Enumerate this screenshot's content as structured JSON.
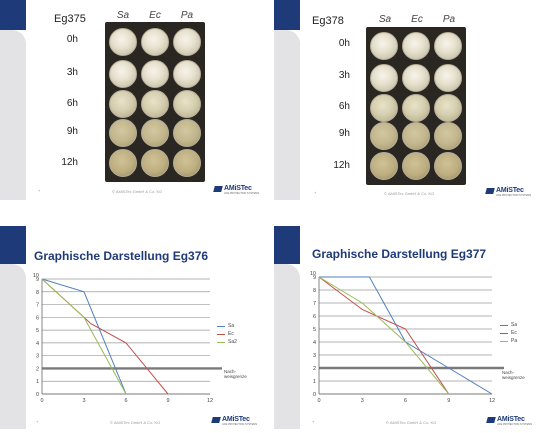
{
  "colors": {
    "brand_blue": "#1e3a78",
    "sidebar_grey": "#e3e3e6",
    "series_sa": "#4f81bd",
    "series_ec": "#c0504d",
    "series_pa": "#9bbb59"
  },
  "footer": {
    "copyright": "© AMiSTec GmbH & Co. KG",
    "logo_text": "AMiSTec",
    "logo_sub": "LIFE PROTECTION SYSTEMS",
    "page_num": "+"
  },
  "slides": [
    {
      "sample": "Eg375",
      "columns": [
        "Sa",
        "Ec",
        "Pa"
      ],
      "times": [
        "0h",
        "3h",
        "6h",
        "9h",
        "12h"
      ],
      "growth": [
        [
          "heavy",
          "heavy",
          "heavy"
        ],
        [
          "heavy",
          "heavy",
          "heavy"
        ],
        [
          "medium",
          "medium",
          "medium"
        ],
        [
          "light",
          "light",
          "light"
        ],
        [
          "empty",
          "empty",
          "empty"
        ]
      ]
    },
    {
      "sample": "Eg378",
      "columns": [
        "Sa",
        "Ec",
        "Pa"
      ],
      "times": [
        "0h",
        "3h",
        "6h",
        "9h",
        "12h"
      ],
      "growth": [
        [
          "heavy",
          "heavy",
          "heavy"
        ],
        [
          "heavy",
          "heavy",
          "heavy"
        ],
        [
          "medium",
          "medium",
          "medium"
        ],
        [
          "light",
          "light",
          "light"
        ],
        [
          "empty",
          "empty",
          "empty"
        ]
      ]
    },
    {
      "title": "Graphische Darstellung Eg376",
      "legend": [
        "Sa",
        "Ec",
        "Sa2"
      ],
      "threshold_label": "Nach-\nweisgrenze"
    },
    {
      "title": "Graphische Darstellung Eg377",
      "legend": [
        "Sa",
        "Ec",
        "Pa"
      ],
      "threshold_label": "Nach-\nweisgrenze"
    }
  ],
  "chart_data": [
    {
      "type": "line",
      "title": "Graphische Darstellung Eg376",
      "x_ticks": [
        "0",
        "3",
        "6",
        "9",
        "12"
      ],
      "y_ticks": [
        "0",
        "1",
        "2",
        "3",
        "4",
        "5",
        "6",
        "7",
        "8",
        "9",
        "10"
      ],
      "xlim": [
        0,
        12
      ],
      "ylim": [
        0,
        9
      ],
      "threshold": 2,
      "series": [
        {
          "name": "Sa",
          "color": "#4f81bd",
          "x": [
            0,
            3,
            6
          ],
          "y": [
            9,
            8,
            0
          ]
        },
        {
          "name": "Ec",
          "color": "#c0504d",
          "x": [
            0,
            3.5,
            6,
            9
          ],
          "y": [
            9,
            5.5,
            4,
            0
          ]
        },
        {
          "name": "Sa2",
          "color": "#9bbb59",
          "x": [
            0,
            3,
            6
          ],
          "y": [
            9,
            6,
            0
          ]
        }
      ]
    },
    {
      "type": "line",
      "title": "Graphische Darstellung Eg377",
      "x_ticks": [
        "0",
        "3",
        "6",
        "9",
        "12"
      ],
      "y_ticks": [
        "0",
        "1",
        "2",
        "3",
        "4",
        "5",
        "6",
        "7",
        "8",
        "9",
        "10"
      ],
      "xlim": [
        0,
        12
      ],
      "ylim": [
        0,
        9
      ],
      "threshold": 2,
      "series": [
        {
          "name": "Sa",
          "color": "#4f81bd",
          "x": [
            0,
            3.5,
            6,
            9,
            12
          ],
          "y": [
            9,
            9,
            4,
            2,
            0
          ]
        },
        {
          "name": "Ec",
          "color": "#c0504d",
          "x": [
            0,
            3,
            6,
            9
          ],
          "y": [
            9,
            6.5,
            5,
            0
          ]
        },
        {
          "name": "Pa",
          "color": "#9bbb59",
          "x": [
            0,
            3,
            6,
            9
          ],
          "y": [
            9,
            7,
            4,
            0
          ]
        }
      ]
    }
  ]
}
